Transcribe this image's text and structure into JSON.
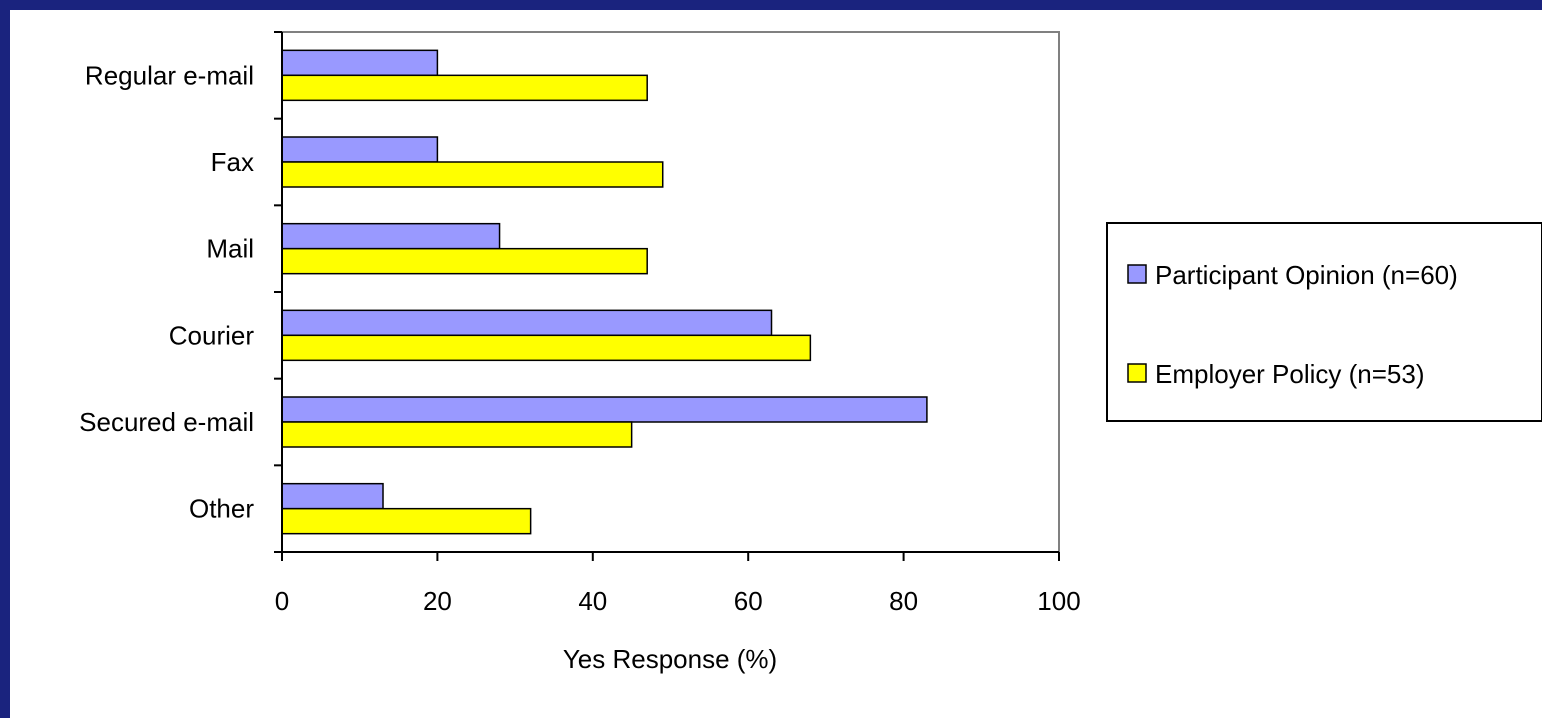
{
  "chart_data": {
    "type": "bar",
    "orientation": "horizontal",
    "categories": [
      "Regular e-mail",
      "Fax",
      "Mail",
      "Courier",
      "Secured e-mail",
      "Other"
    ],
    "series": [
      {
        "name": "Participant Opinion (n=60)",
        "color": "#9999ff",
        "values": [
          20,
          20,
          28,
          63,
          83,
          13
        ]
      },
      {
        "name": "Employer Policy (n=53)",
        "color": "#ffff00",
        "values": [
          47,
          49,
          47,
          68,
          45,
          32
        ]
      }
    ],
    "xlabel": "Yes Response (%)",
    "ylabel": "",
    "xlim": [
      0,
      100
    ],
    "xticks": [
      "0",
      "20",
      "40",
      "60",
      "80",
      "100"
    ],
    "grid": false,
    "legend_position": "right"
  }
}
